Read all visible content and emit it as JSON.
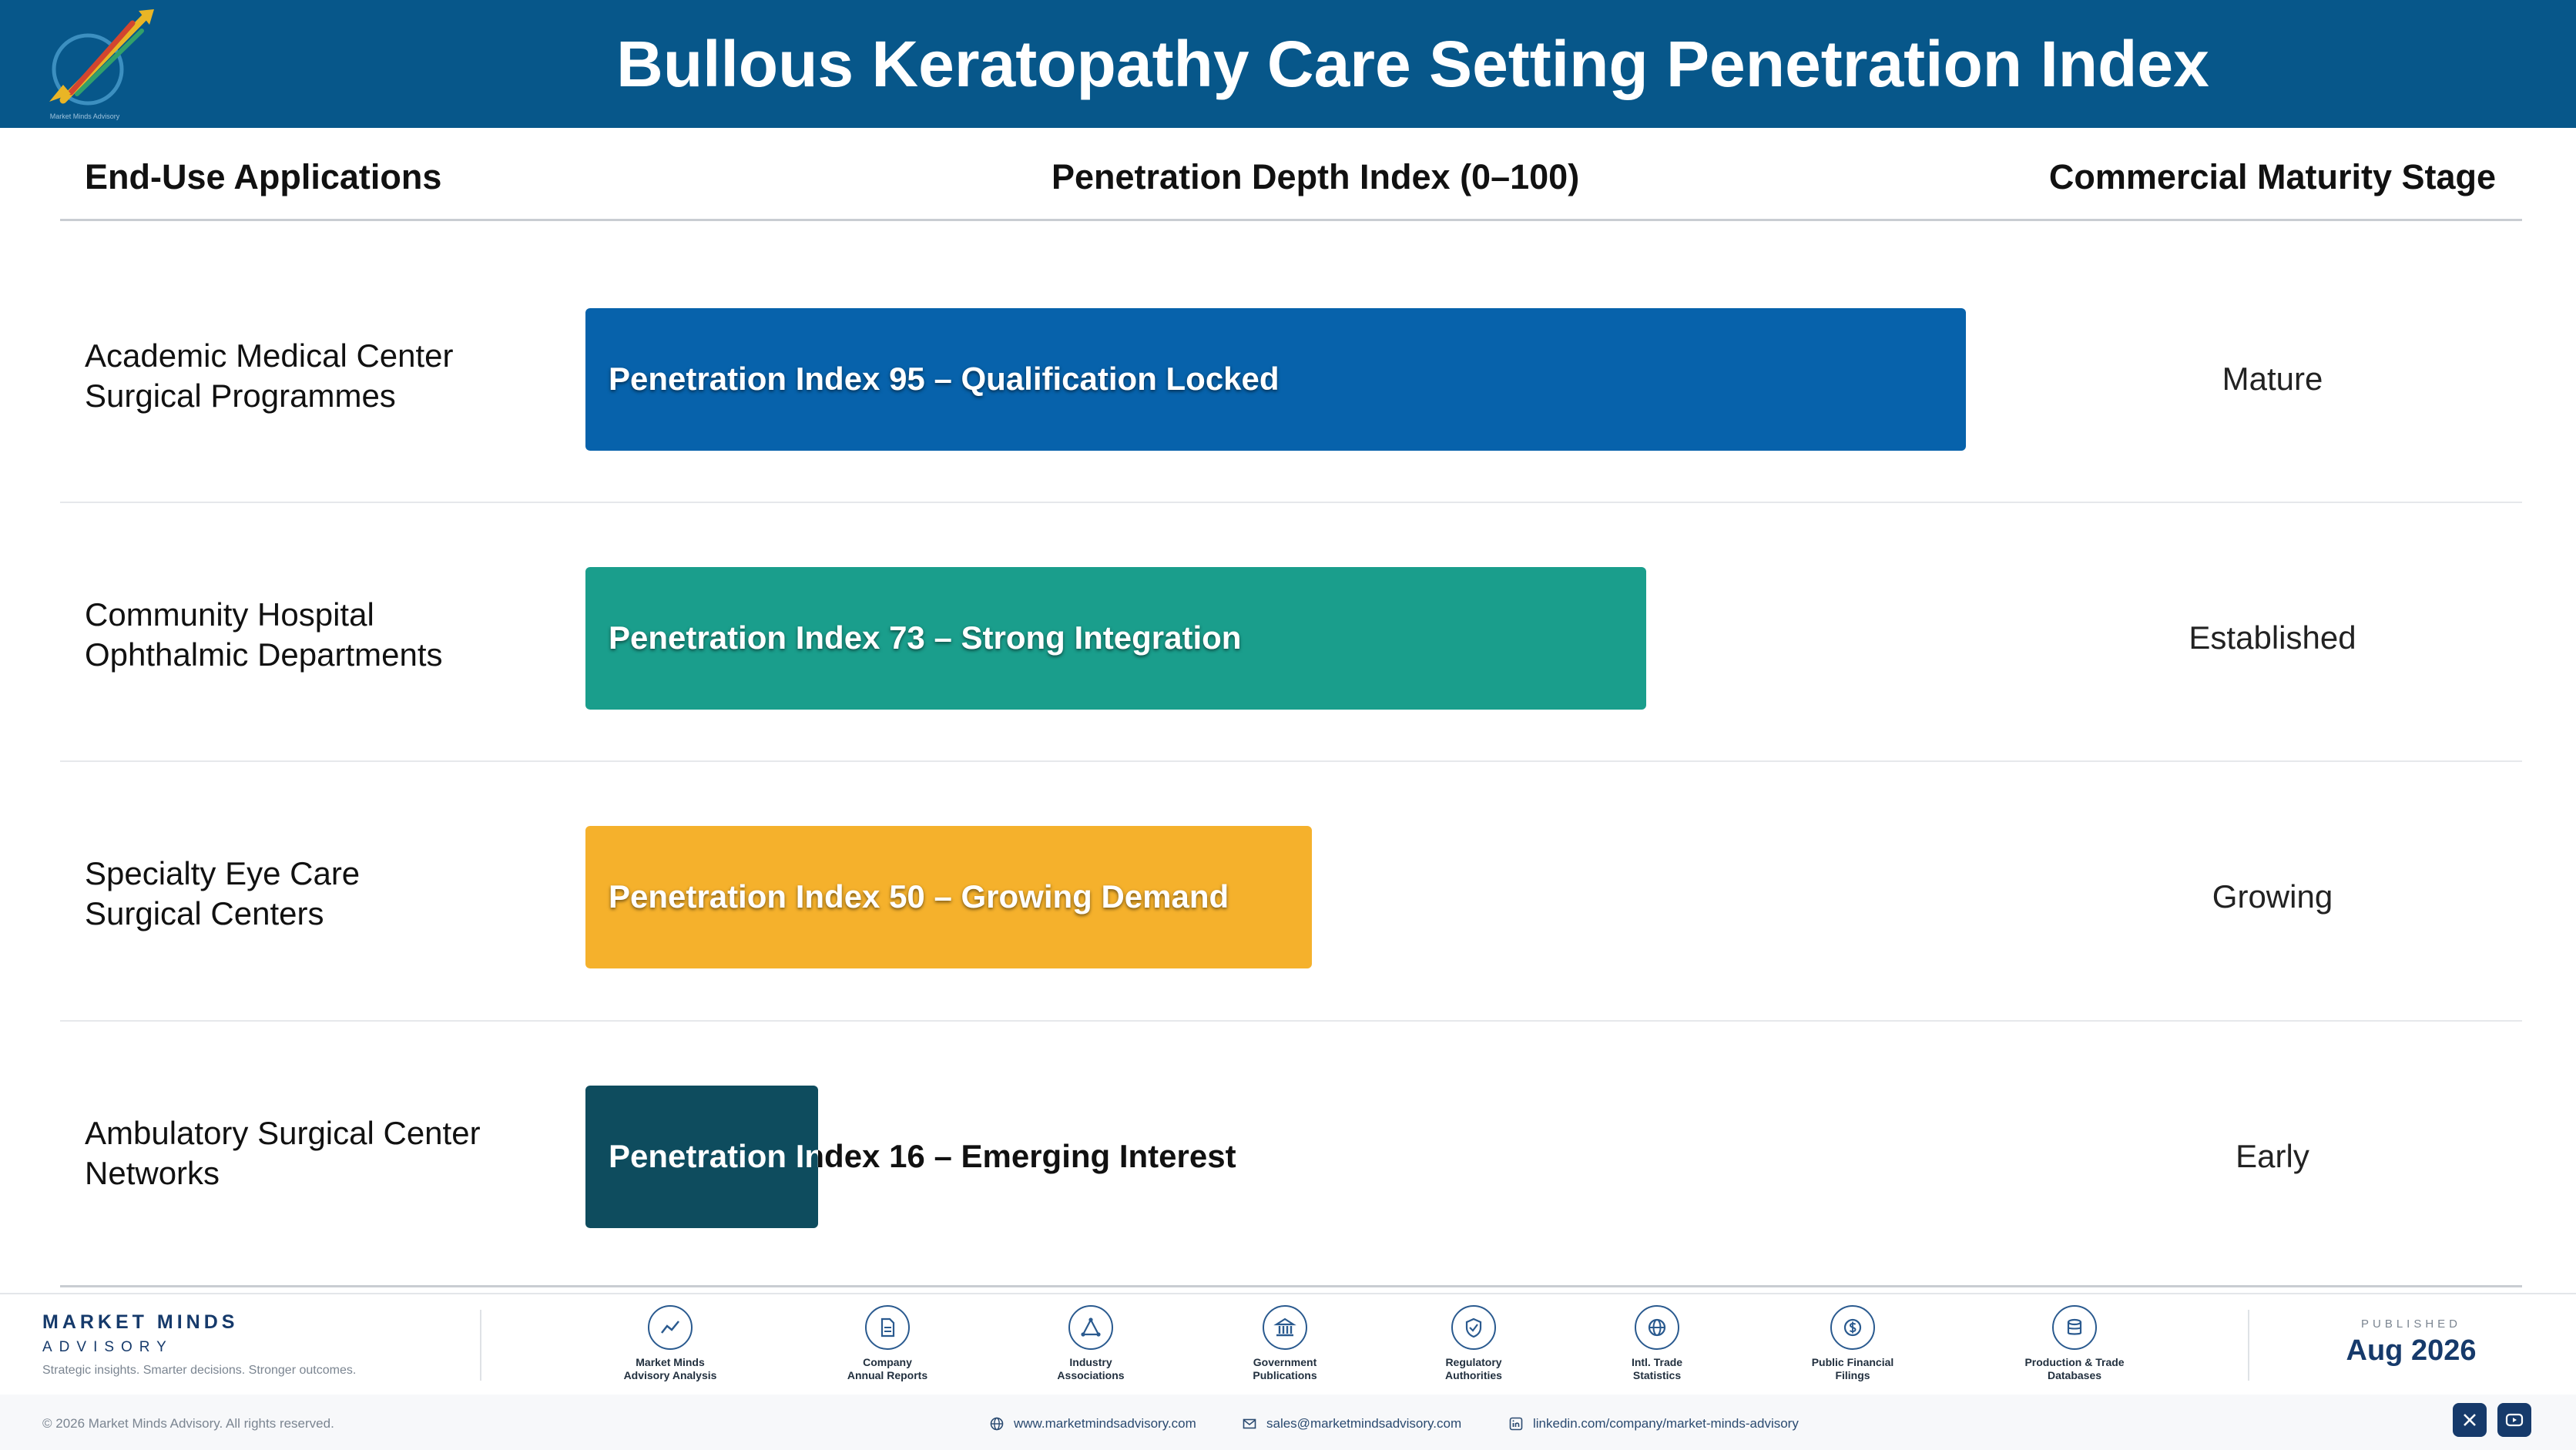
{
  "header": {
    "title": "Bullous Keratopathy Care Setting Penetration Index"
  },
  "columns": {
    "applications": "End-Use Applications",
    "index": "Penetration Depth Index (0–100)",
    "stage": "Commercial Maturity Stage"
  },
  "chart_data": {
    "type": "bar",
    "orientation": "horizontal",
    "title": "Bullous Keratopathy Care Setting Penetration Index",
    "xlabel": "Penetration Depth Index (0–100)",
    "xlim": [
      0,
      100
    ],
    "grid": false,
    "categories": [
      "Academic Medical Center Surgical Programmes",
      "Community Hospital Ophthalmic Departments",
      "Specialty Eye Care Surgical Centers",
      "Ambulatory Surgical Center Networks"
    ],
    "values": [
      95,
      73,
      50,
      16
    ],
    "rows": [
      {
        "label_line1": "Academic Medical Center",
        "label_line2": "Surgical Programmes",
        "value": 95,
        "bar_label": "Penetration Index 95 – Qualification Locked",
        "stage": "Mature",
        "color": "#0762ab"
      },
      {
        "label_line1": "Community Hospital",
        "label_line2": "Ophthalmic Departments",
        "value": 73,
        "bar_label": "Penetration Index 73 – Strong Integration",
        "stage": "Established",
        "color": "#1a9e8c"
      },
      {
        "label_line1": "Specialty Eye Care",
        "label_line2": "Surgical Centers",
        "value": 50,
        "bar_label": "Penetration Index 50 – Growing Demand",
        "stage": "Growing",
        "color": "#f5b12c"
      },
      {
        "label_line1": "Ambulatory Surgical Center",
        "label_line2": "Networks",
        "value": 16,
        "bar_label": "Penetration Index 16 – Emerging Interest",
        "stage": "Early",
        "color": "#0e4c5e"
      }
    ]
  },
  "footer": {
    "brand_name": "MARKET MINDS",
    "brand_sub": "ADVISORY",
    "tagline": "Strategic insights. Smarter decisions. Stronger outcomes.",
    "sources": [
      {
        "line1": "Market Minds",
        "line2": "Advisory Analysis",
        "icon": "trend-line-icon"
      },
      {
        "line1": "Company",
        "line2": "Annual Reports",
        "icon": "document-icon"
      },
      {
        "line1": "Industry",
        "line2": "Associations",
        "icon": "network-icon"
      },
      {
        "line1": "Government",
        "line2": "Publications",
        "icon": "government-building-icon"
      },
      {
        "line1": "Regulatory",
        "line2": "Authorities",
        "icon": "shield-check-icon"
      },
      {
        "line1": "Intl. Trade",
        "line2": "Statistics",
        "icon": "globe-icon"
      },
      {
        "line1": "Public Financial",
        "line2": "Filings",
        "icon": "dollar-coin-icon"
      },
      {
        "line1": "Production & Trade",
        "line2": "Databases",
        "icon": "database-icon"
      }
    ],
    "published_label": "PUBLISHED",
    "published_date": "Aug 2026",
    "copyright": "© 2026 Market Minds Advisory. All rights reserved.",
    "website": "www.marketmindsadvisory.com",
    "email": "sales@marketmindsadvisory.com",
    "linkedin": "linkedin.com/company/market-minds-advisory"
  }
}
